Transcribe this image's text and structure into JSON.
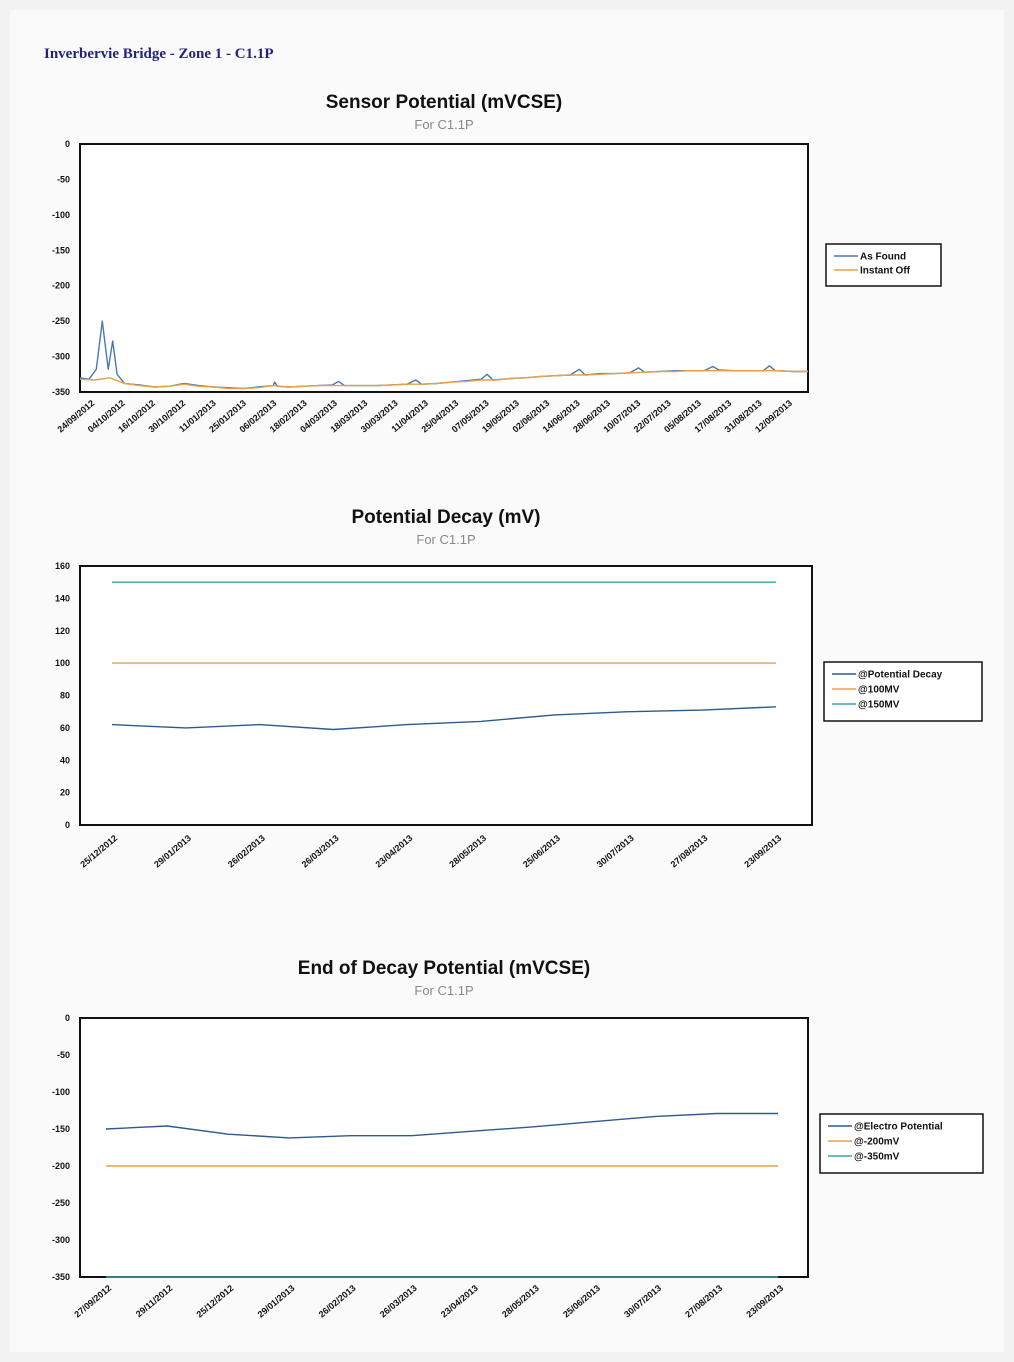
{
  "document": {
    "title": "Inverbervie Bridge - Zone 1 - C1.1P"
  },
  "chart_data": [
    {
      "type": "line",
      "title": "Sensor Potential (mVCSE)",
      "subtitle": "For C1.1P",
      "xlabel": "",
      "ylabel": "",
      "ylim": [
        -350,
        0
      ],
      "yticks": [
        0,
        -50,
        -100,
        -150,
        -200,
        -250,
        -300,
        -350
      ],
      "categories": [
        "24/09/2012",
        "04/10/2012",
        "16/10/2012",
        "30/10/2012",
        "11/01/2013",
        "25/01/2013",
        "06/02/2013",
        "18/02/2013",
        "04/03/2013",
        "18/03/2013",
        "30/03/2013",
        "11/04/2013",
        "25/04/2013",
        "07/05/2013",
        "19/05/2013",
        "02/06/2013",
        "14/06/2013",
        "28/06/2013",
        "10/07/2013",
        "22/07/2013",
        "05/08/2013",
        "17/08/2013",
        "31/08/2013",
        "12/09/2013"
      ],
      "x_range": [
        0,
        24.5
      ],
      "legend_position": "right",
      "grid": false,
      "series": [
        {
          "name": "As Found",
          "color": "#4a78b0",
          "points": [
            [
              0,
              -330
            ],
            [
              0.3,
              -332
            ],
            [
              0.55,
              -318
            ],
            [
              0.75,
              -250
            ],
            [
              0.95,
              -318
            ],
            [
              1.1,
              -278
            ],
            [
              1.25,
              -325
            ],
            [
              1.5,
              -338
            ],
            [
              2,
              -340
            ],
            [
              2.5,
              -343
            ],
            [
              3,
              -342
            ],
            [
              3.5,
              -338
            ],
            [
              4,
              -341
            ],
            [
              4.5,
              -343
            ],
            [
              5,
              -344
            ],
            [
              5.5,
              -345
            ],
            [
              6,
              -343
            ],
            [
              6.5,
              -341
            ],
            [
              6.55,
              -336
            ],
            [
              6.65,
              -342
            ],
            [
              7,
              -343
            ],
            [
              7.5,
              -342
            ],
            [
              8,
              -341
            ],
            [
              8.5,
              -340
            ],
            [
              8.7,
              -335
            ],
            [
              8.9,
              -341
            ],
            [
              9.5,
              -341
            ],
            [
              10,
              -341
            ],
            [
              10.5,
              -340
            ],
            [
              11,
              -339
            ],
            [
              11.3,
              -333
            ],
            [
              11.5,
              -339
            ],
            [
              12,
              -338
            ],
            [
              12.5,
              -336
            ],
            [
              13,
              -334
            ],
            [
              13.5,
              -332
            ],
            [
              13.7,
              -325
            ],
            [
              13.9,
              -333
            ],
            [
              14.5,
              -331
            ],
            [
              15,
              -330
            ],
            [
              15.5,
              -328
            ],
            [
              16,
              -327
            ],
            [
              16.5,
              -326
            ],
            [
              16.8,
              -318
            ],
            [
              17,
              -326
            ],
            [
              17.5,
              -324
            ],
            [
              18,
              -324
            ],
            [
              18.5,
              -323
            ],
            [
              18.8,
              -316
            ],
            [
              19,
              -322
            ],
            [
              19.5,
              -321
            ],
            [
              20,
              -320
            ],
            [
              20.5,
              -320
            ],
            [
              21,
              -320
            ],
            [
              21.3,
              -314
            ],
            [
              21.5,
              -319
            ],
            [
              22,
              -320
            ],
            [
              22.5,
              -320
            ],
            [
              23,
              -320
            ],
            [
              23.2,
              -313
            ],
            [
              23.4,
              -320
            ],
            [
              24,
              -321
            ],
            [
              24.5,
              -321
            ]
          ]
        },
        {
          "name": "Instant Off",
          "color": "#e8a04a",
          "points": [
            [
              0,
              -332
            ],
            [
              0.5,
              -333
            ],
            [
              1,
              -330
            ],
            [
              1.5,
              -338
            ],
            [
              2,
              -341
            ],
            [
              2.5,
              -343
            ],
            [
              3,
              -342
            ],
            [
              3.5,
              -339
            ],
            [
              4,
              -342
            ],
            [
              4.5,
              -343
            ],
            [
              5,
              -345
            ],
            [
              5.5,
              -345
            ],
            [
              6,
              -344
            ],
            [
              6.5,
              -341
            ],
            [
              7,
              -343
            ],
            [
              7.5,
              -342
            ],
            [
              8,
              -341
            ],
            [
              8.5,
              -341
            ],
            [
              9,
              -341
            ],
            [
              9.5,
              -341
            ],
            [
              10,
              -341
            ],
            [
              10.5,
              -340
            ],
            [
              11,
              -339
            ],
            [
              11.5,
              -339
            ],
            [
              12,
              -338
            ],
            [
              12.5,
              -336
            ],
            [
              13,
              -335
            ],
            [
              13.5,
              -333
            ],
            [
              14,
              -333
            ],
            [
              14.5,
              -331
            ],
            [
              15,
              -330
            ],
            [
              15.5,
              -328
            ],
            [
              16,
              -327
            ],
            [
              16.5,
              -326
            ],
            [
              17,
              -326
            ],
            [
              17.5,
              -325
            ],
            [
              18,
              -324
            ],
            [
              18.5,
              -323
            ],
            [
              19,
              -322
            ],
            [
              19.5,
              -321
            ],
            [
              20,
              -321
            ],
            [
              20.5,
              -320
            ],
            [
              21,
              -320
            ],
            [
              21.5,
              -320
            ],
            [
              22,
              -320
            ],
            [
              22.5,
              -320
            ],
            [
              23,
              -320
            ],
            [
              23.5,
              -320
            ],
            [
              24,
              -321
            ],
            [
              24.5,
              -321
            ]
          ]
        }
      ]
    },
    {
      "type": "line",
      "title": "Potential Decay (mV)",
      "subtitle": "For C1.1P",
      "xlabel": "",
      "ylabel": "",
      "ylim": [
        0,
        160
      ],
      "yticks": [
        160,
        140,
        120,
        100,
        80,
        60,
        40,
        20,
        0
      ],
      "categories": [
        "25/12/2012",
        "29/01/2013",
        "26/02/2013",
        "26/03/2013",
        "23/04/2013",
        "28/05/2013",
        "25/06/2013",
        "30/07/2013",
        "27/08/2013",
        "23/09/2013"
      ],
      "legend_position": "right",
      "grid": false,
      "series": [
        {
          "name": "@Potential Decay",
          "color": "#2f5a8e",
          "values": [
            62,
            60,
            62,
            59,
            62,
            64,
            68,
            70,
            71,
            73
          ]
        },
        {
          "name": "@100MV",
          "color": "#e8a04a",
          "values": [
            100,
            100,
            100,
            100,
            100,
            100,
            100,
            100,
            100,
            100
          ]
        },
        {
          "name": "@150MV",
          "color": "#3aa7a3",
          "values": [
            150,
            150,
            150,
            150,
            150,
            150,
            150,
            150,
            150,
            150
          ]
        }
      ]
    },
    {
      "type": "line",
      "title": "End of Decay Potential (mVCSE)",
      "subtitle": "For C1.1P",
      "xlabel": "",
      "ylabel": "",
      "ylim": [
        -350,
        0
      ],
      "yticks": [
        0,
        -50,
        -100,
        -150,
        -200,
        -250,
        -300,
        -350
      ],
      "categories": [
        "27/09/2012",
        "29/11/2012",
        "25/12/2012",
        "29/01/2013",
        "26/02/2013",
        "26/03/2013",
        "23/04/2013",
        "28/05/2013",
        "25/06/2013",
        "30/07/2013",
        "27/08/2013",
        "23/09/2013"
      ],
      "legend_position": "right",
      "grid": false,
      "series": [
        {
          "name": "@Electro Potential",
          "color": "#2f5a8e",
          "values": [
            -150,
            -146,
            -157,
            -162,
            -159,
            -159,
            -153,
            -147,
            -140,
            -133,
            -129,
            -129
          ]
        },
        {
          "name": "@-200mV",
          "color": "#e8a04a",
          "values": [
            -200,
            -200,
            -200,
            -200,
            -200,
            -200,
            -200,
            -200,
            -200,
            -200,
            -200,
            -200
          ]
        },
        {
          "name": "@-350mV",
          "color": "#3aa7a3",
          "values": [
            -350,
            -350,
            -350,
            -350,
            -350,
            -350,
            -350,
            -350,
            -350,
            -350,
            -350,
            -350
          ]
        }
      ]
    }
  ]
}
